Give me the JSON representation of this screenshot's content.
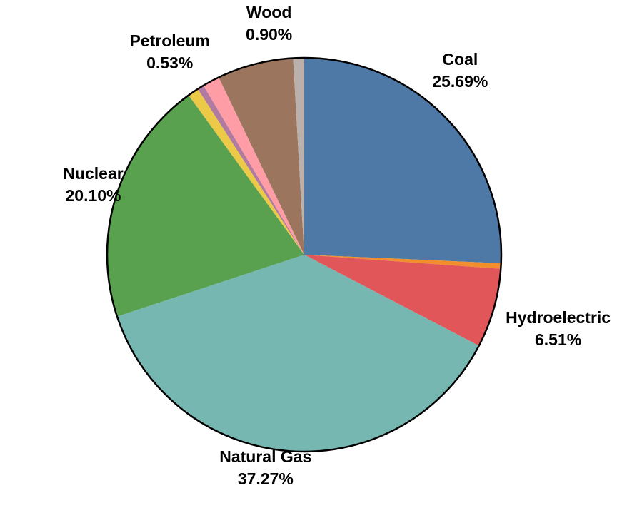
{
  "chart_data": {
    "type": "pie",
    "slices": [
      {
        "name": "Coal",
        "value": 25.69,
        "color": "#4e79a7",
        "label": "Coal",
        "value_label": "25.69%"
      },
      {
        "name": "",
        "value": 0.45,
        "color": "#f28e2b",
        "label": "",
        "value_label": ""
      },
      {
        "name": "Hydroelectric",
        "value": 6.51,
        "color": "#e15759",
        "label": "Hydroelectric",
        "value_label": "6.51%"
      },
      {
        "name": "Natural Gas",
        "value": 37.27,
        "color": "#76b7b2",
        "label": "Natural Gas",
        "value_label": "37.27%"
      },
      {
        "name": "Nuclear",
        "value": 20.1,
        "color": "#59a14f",
        "label": "Nuclear",
        "value_label": "20.10%"
      },
      {
        "name": "",
        "value": 0.9,
        "color": "#edc948",
        "label": "",
        "value_label": ""
      },
      {
        "name": "Petroleum",
        "value": 0.53,
        "color": "#b07aa1",
        "label": "Petroleum",
        "value_label": "0.53%"
      },
      {
        "name": "",
        "value": 1.4,
        "color": "#ff9da7",
        "label": "",
        "value_label": ""
      },
      {
        "name": "",
        "value": 6.25,
        "color": "#9c755f",
        "label": "",
        "value_label": ""
      },
      {
        "name": "Wood",
        "value": 0.9,
        "color": "#bab0ac",
        "label": "Wood",
        "value_label": "0.90%"
      }
    ],
    "start_angle_deg": 0,
    "direction": "clockwise",
    "title": "",
    "legend": "none"
  }
}
